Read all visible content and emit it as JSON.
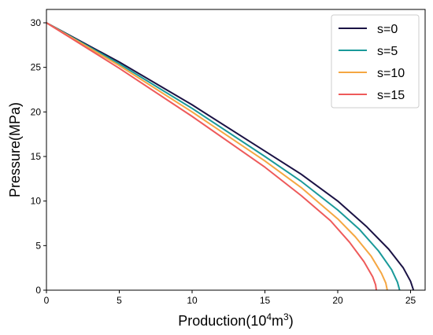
{
  "chart_data": {
    "type": "line",
    "title": "",
    "xlabel_main": "Production(10",
    "xlabel_sup": "4",
    "xlabel_mid": "m",
    "xlabel_sup2": "3",
    "xlabel_end": ")",
    "ylabel": "Pressure(MPa)",
    "xlim": [
      0,
      26
    ],
    "ylim": [
      0,
      31.5
    ],
    "xticks": [
      0,
      5,
      10,
      15,
      20,
      25
    ],
    "yticks": [
      0,
      5,
      10,
      15,
      20,
      25,
      30
    ],
    "grid": false,
    "legend_position": "top-right",
    "series": [
      {
        "name": "s=0",
        "color": "#1a1244",
        "x": [
          0,
          5,
          10,
          15,
          17.5,
          20,
          22,
          23.5,
          24.5,
          25.0,
          25.2
        ],
        "y": [
          30,
          25.6,
          20.8,
          15.6,
          13.0,
          10.0,
          7.1,
          4.6,
          2.5,
          1.0,
          0
        ]
      },
      {
        "name": "s=5",
        "color": "#1a9a9a",
        "x": [
          0,
          5,
          10,
          15,
          17.5,
          20,
          21.5,
          22.8,
          23.7,
          24.1,
          24.25
        ],
        "y": [
          30,
          25.4,
          20.4,
          15.0,
          12.2,
          9.0,
          6.8,
          4.4,
          2.3,
          0.9,
          0
        ]
      },
      {
        "name": "s=10",
        "color": "#f5a742",
        "x": [
          0,
          5,
          10,
          15,
          17.5,
          20,
          21.2,
          22.3,
          23.0,
          23.3,
          23.4
        ],
        "y": [
          30,
          25.2,
          20.0,
          14.5,
          11.5,
          8.0,
          6.0,
          3.8,
          1.9,
          0.8,
          0
        ]
      },
      {
        "name": "s=15",
        "color": "#ee5a5a",
        "x": [
          0,
          5,
          10,
          15,
          17.5,
          19.5,
          20.8,
          21.8,
          22.4,
          22.6,
          22.65
        ],
        "y": [
          30,
          24.9,
          19.5,
          13.8,
          10.6,
          7.8,
          5.4,
          3.2,
          1.5,
          0.6,
          0
        ]
      }
    ]
  }
}
